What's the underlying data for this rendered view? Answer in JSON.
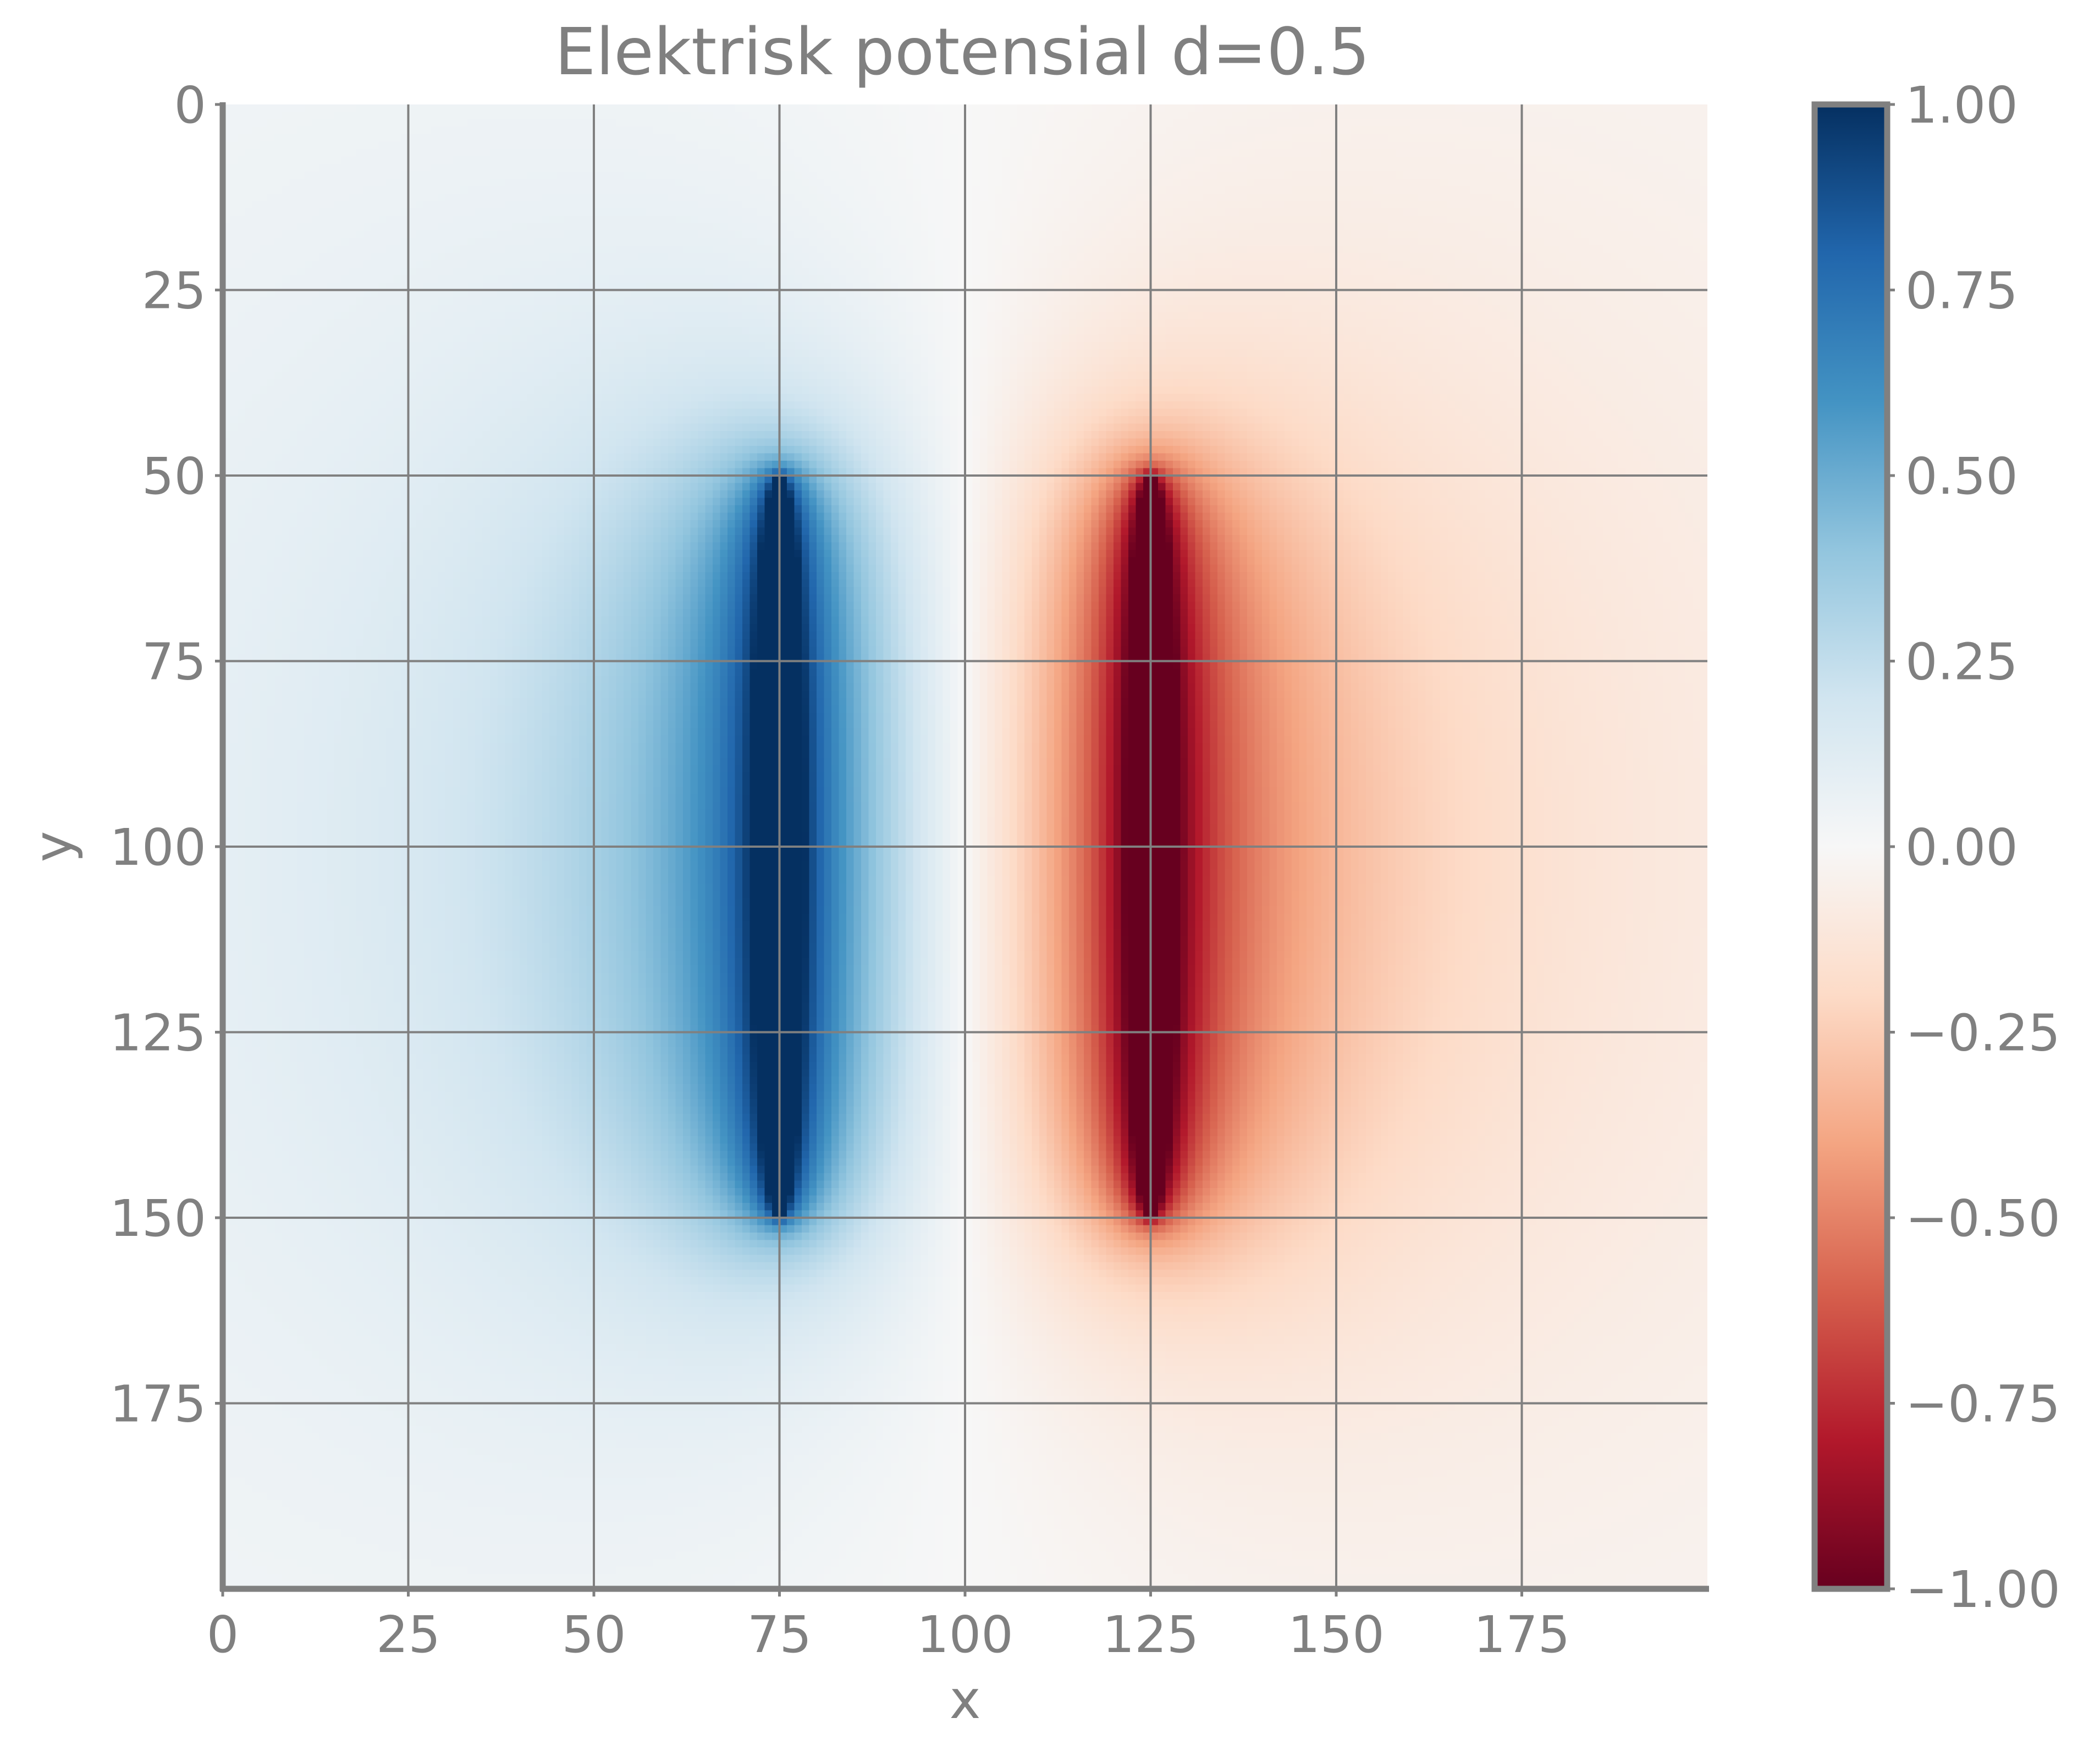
{
  "chart_data": {
    "type": "heatmap",
    "title": "Elektrisk potensial d=0.5",
    "xlabel": "x",
    "ylabel": "y",
    "xlim": [
      0,
      200
    ],
    "ylim": [
      200,
      0
    ],
    "x_ticks": [
      0,
      25,
      50,
      75,
      100,
      125,
      150,
      175
    ],
    "y_ticks": [
      0,
      25,
      50,
      75,
      100,
      125,
      150,
      175
    ],
    "x_tick_labels": [
      "0",
      "25",
      "50",
      "75",
      "100",
      "125",
      "150",
      "175"
    ],
    "y_tick_labels": [
      "0",
      "25",
      "50",
      "75",
      "100",
      "125",
      "150",
      "175"
    ],
    "grid": true,
    "colormap": "RdBu",
    "colorbar": {
      "vmin": -1.0,
      "vmax": 1.0,
      "ticks": [
        1.0,
        0.75,
        0.5,
        0.25,
        0.0,
        -0.25,
        -0.5,
        -0.75,
        -1.0
      ],
      "tick_labels": [
        "1.00",
        "0.75",
        "0.50",
        "0.25",
        "0.00",
        "−0.25",
        "−0.50",
        "−0.75",
        "−1.00"
      ]
    },
    "sources": [
      {
        "label": "positive plate",
        "x": 75,
        "y_start": 50,
        "y_end": 150,
        "value": 1.0
      },
      {
        "label": "negative plate",
        "x": 125,
        "y_start": 50,
        "y_end": 150,
        "value": -1.0
      }
    ],
    "colors": {
      "ink": "#808080",
      "colormap_stops": [
        "#67001f",
        "#b2182b",
        "#d6604d",
        "#f4a582",
        "#fddbc7",
        "#f7f7f7",
        "#d1e5f0",
        "#92c5de",
        "#4393c3",
        "#2166ac",
        "#053061"
      ]
    }
  }
}
